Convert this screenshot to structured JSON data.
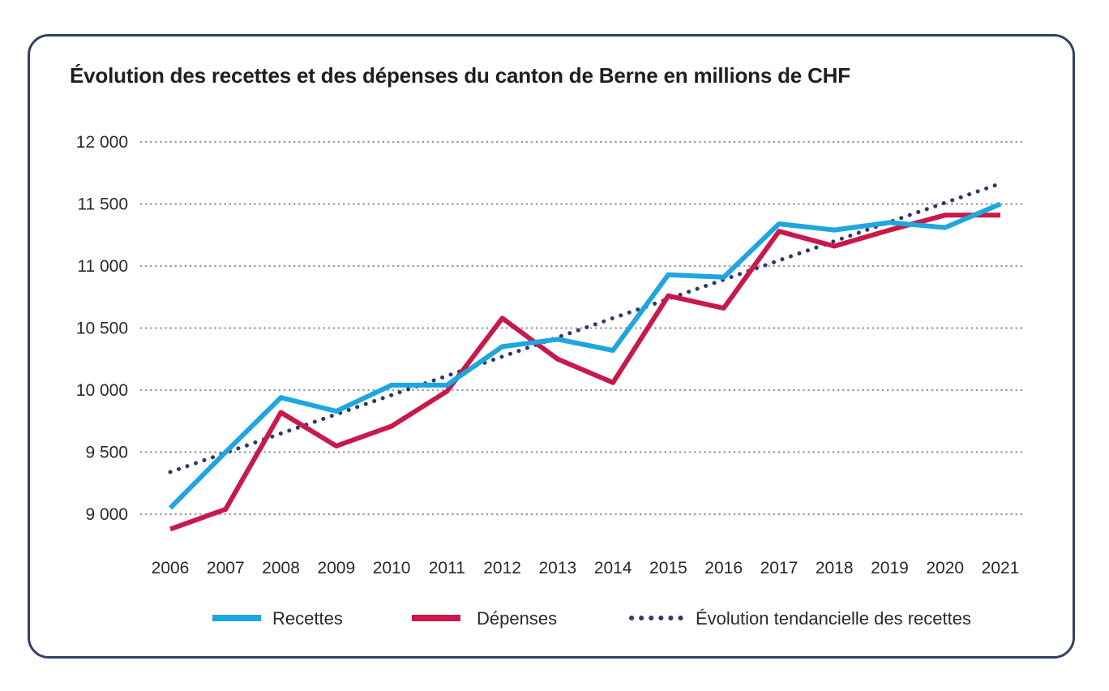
{
  "chart_data": {
    "type": "line",
    "title": "Évolution des recettes et des dépenses du canton de Berne en millions de CHF",
    "categories": [
      "2006",
      "2007",
      "2008",
      "2009",
      "2010",
      "2011",
      "2012",
      "2013",
      "2014",
      "2015",
      "2016",
      "2017",
      "2018",
      "2019",
      "2020",
      "2021"
    ],
    "ylim": [
      8800,
      12000
    ],
    "yticks": [
      9000,
      9500,
      10000,
      10500,
      11000,
      11500,
      12000
    ],
    "ytick_labels": [
      "9 000",
      "9 500",
      "10 000",
      "10 500",
      "11 000",
      "11 500",
      "12 000"
    ],
    "grid": true,
    "legend_position": "bottom",
    "series": [
      {
        "name": "Recettes",
        "color": "#1ea6df",
        "style": "solid",
        "values": [
          9050,
          9500,
          9940,
          9830,
          10040,
          10040,
          10350,
          10410,
          10320,
          10930,
          10910,
          11340,
          11290,
          11350,
          11310,
          11500
        ]
      },
      {
        "name": "Dépenses",
        "color": "#c8194b",
        "style": "solid",
        "values": [
          8880,
          9040,
          9820,
          9550,
          9710,
          9990,
          10580,
          10250,
          10060,
          10760,
          10660,
          11280,
          11160,
          11290,
          11410,
          11410
        ]
      },
      {
        "name": "Évolution tendancielle des recettes",
        "color": "#2e3a6b",
        "style": "dotted",
        "values": [
          9340,
          9495,
          9650,
          9805,
          9960,
          10115,
          10270,
          10425,
          10580,
          10735,
          10890,
          11045,
          11200,
          11355,
          11510,
          11665
        ]
      }
    ]
  }
}
